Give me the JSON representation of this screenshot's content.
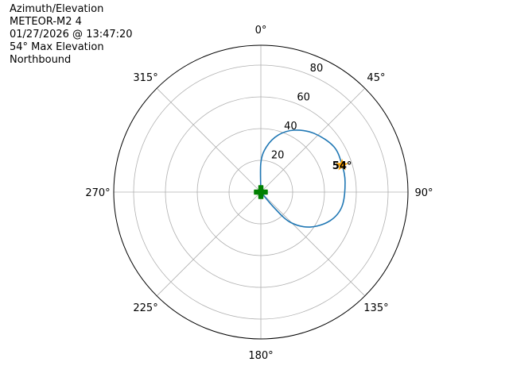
{
  "title_lines": [
    "Azimuth/Elevation",
    "METEOR-M2 4",
    "01/27/2026 @ 13:47:20",
    "54° Max Elevation",
    "Northbound"
  ],
  "chart_data": {
    "type": "polar-line",
    "theta_zero": "north",
    "theta_direction": "clockwise",
    "angle_ticks": [
      0,
      45,
      90,
      135,
      180,
      225,
      270,
      315
    ],
    "angle_tick_labels": [
      "0°",
      "45°",
      "90°",
      "135°",
      "180°",
      "225°",
      "270°",
      "315°"
    ],
    "radial_ticks": [
      20,
      40,
      60,
      80
    ],
    "radial_tick_labels": [
      "20",
      "40",
      "60",
      "80"
    ],
    "rlim": [
      0,
      92.5
    ],
    "grid": true,
    "series": [
      {
        "color": "#1f77b4",
        "points": [
          {
            "az": 0,
            "el": 0
          },
          {
            "az": 0,
            "el": 18.5
          },
          {
            "az": 7,
            "el": 28.7
          },
          {
            "az": 17,
            "el": 37.6
          },
          {
            "az": 28.3,
            "el": 44.3
          },
          {
            "az": 42.2,
            "el": 49.9
          },
          {
            "az": 58.2,
            "el": 54.1
          },
          {
            "az": 71.6,
            "el": 53.8
          },
          {
            "az": 83.5,
            "el": 53.3
          },
          {
            "az": 100,
            "el": 51.8
          },
          {
            "az": 112.5,
            "el": 47.1
          },
          {
            "az": 125.4,
            "el": 38
          },
          {
            "az": 135.8,
            "el": 26.5
          },
          {
            "az": 139.6,
            "el": 13.1
          },
          {
            "az": 140,
            "el": 0
          }
        ]
      }
    ],
    "markers": [
      {
        "kind": "plus",
        "color": "#008000",
        "az": 0,
        "el": 0
      },
      {
        "kind": "star",
        "color": "#ffa500",
        "az": 71.6,
        "el": 53.8,
        "label": "54°"
      }
    ]
  }
}
